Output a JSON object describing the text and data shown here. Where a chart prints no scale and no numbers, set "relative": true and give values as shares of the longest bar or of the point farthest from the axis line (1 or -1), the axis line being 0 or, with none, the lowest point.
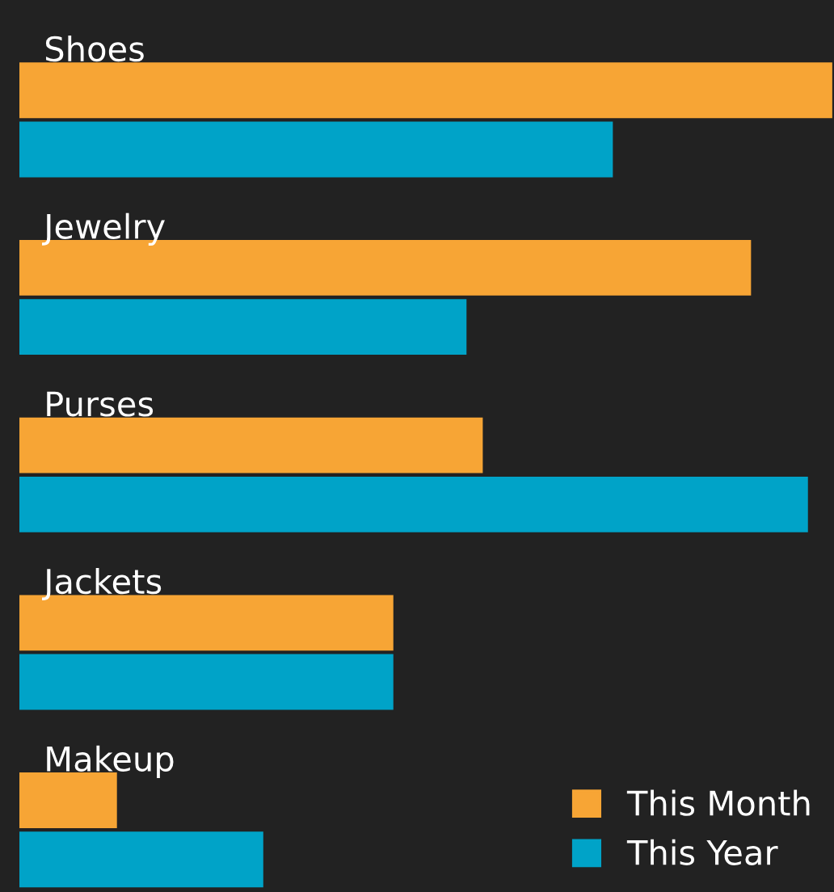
{
  "chart_data": {
    "type": "bar",
    "orientation": "horizontal",
    "relative": true,
    "categories": [
      "Shoes",
      "Jewelry",
      "Purses",
      "Jackets",
      "Makeup"
    ],
    "series": [
      {
        "name": "This Month",
        "color": "#f7a535",
        "values": [
          1,
          0.9,
          0.57,
          0.46,
          0.12
        ]
      },
      {
        "name": "This Year",
        "color": "#00a3c8",
        "values": [
          0.73,
          0.55,
          0.97,
          0.46,
          0.3
        ]
      }
    ],
    "legend": "bottom right"
  }
}
